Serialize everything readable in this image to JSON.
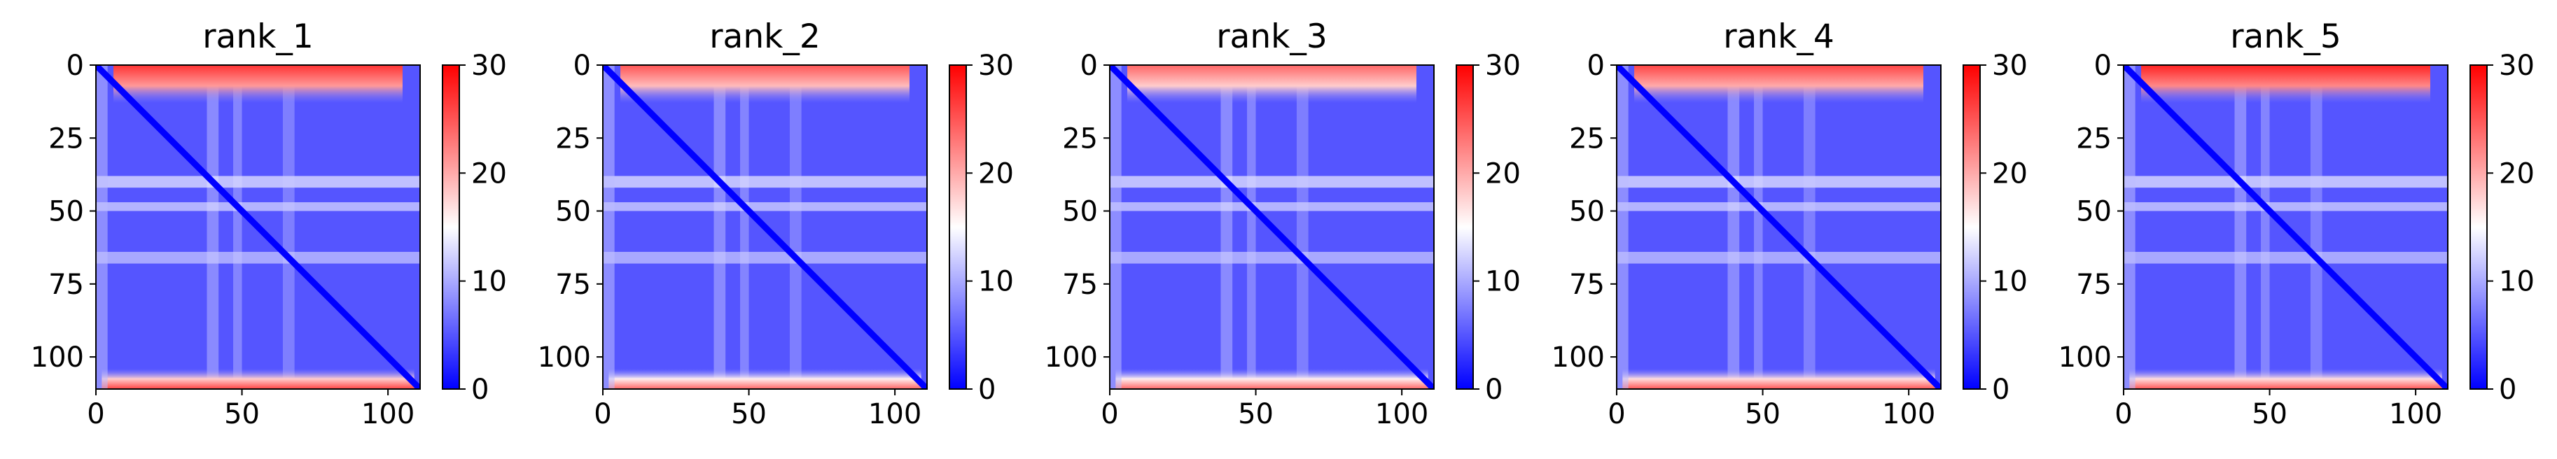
{
  "chart_data": [
    {
      "type": "heatmap",
      "title": "rank_1",
      "x_ticks": [
        0,
        50,
        100
      ],
      "y_ticks": [
        0,
        25,
        50,
        75,
        100
      ],
      "xlim": [
        0,
        111
      ],
      "ylim": [
        111,
        0
      ],
      "colorbar": {
        "vmin": 0,
        "vmax": 30,
        "ticks": [
          0,
          10,
          20,
          30
        ],
        "colormap": "bwr"
      },
      "top_edge_level": 27,
      "bottom_edge_level": 26,
      "band_levels": [
        14,
        13,
        12
      ],
      "colors": {
        "low": "#0000ff",
        "mid": "#ffffff",
        "high": "#ff0000"
      }
    },
    {
      "type": "heatmap",
      "title": "rank_2",
      "x_ticks": [
        0,
        50,
        100
      ],
      "y_ticks": [
        0,
        25,
        50,
        75,
        100
      ],
      "xlim": [
        0,
        111
      ],
      "ylim": [
        111,
        0
      ],
      "colorbar": {
        "vmin": 0,
        "vmax": 30,
        "ticks": [
          0,
          10,
          20,
          30
        ],
        "colormap": "bwr"
      },
      "top_edge_level": 25,
      "bottom_edge_level": 24,
      "band_levels": [
        14,
        13,
        12
      ],
      "colors": {
        "low": "#0000ff",
        "mid": "#ffffff",
        "high": "#ff0000"
      }
    },
    {
      "type": "heatmap",
      "title": "rank_3",
      "x_ticks": [
        0,
        50,
        100
      ],
      "y_ticks": [
        0,
        25,
        50,
        75,
        100
      ],
      "xlim": [
        0,
        111
      ],
      "ylim": [
        111,
        0
      ],
      "colorbar": {
        "vmin": 0,
        "vmax": 30,
        "ticks": [
          0,
          10,
          20,
          30
        ],
        "colormap": "bwr"
      },
      "top_edge_level": 24,
      "bottom_edge_level": 24,
      "band_levels": [
        14,
        13,
        12
      ],
      "colors": {
        "low": "#0000ff",
        "mid": "#ffffff",
        "high": "#ff0000"
      }
    },
    {
      "type": "heatmap",
      "title": "rank_4",
      "x_ticks": [
        0,
        50,
        100
      ],
      "y_ticks": [
        0,
        25,
        50,
        75,
        100
      ],
      "xlim": [
        0,
        111
      ],
      "ylim": [
        111,
        0
      ],
      "colorbar": {
        "vmin": 0,
        "vmax": 30,
        "ticks": [
          0,
          10,
          20,
          30
        ],
        "colormap": "bwr"
      },
      "top_edge_level": 26,
      "bottom_edge_level": 25,
      "band_levels": [
        14,
        13,
        12
      ],
      "colors": {
        "low": "#0000ff",
        "mid": "#ffffff",
        "high": "#ff0000"
      }
    },
    {
      "type": "heatmap",
      "title": "rank_5",
      "x_ticks": [
        0,
        50,
        100
      ],
      "y_ticks": [
        0,
        25,
        50,
        75,
        100
      ],
      "xlim": [
        0,
        111
      ],
      "ylim": [
        111,
        0
      ],
      "colorbar": {
        "vmin": 0,
        "vmax": 30,
        "ticks": [
          0,
          10,
          20,
          30
        ],
        "colormap": "bwr"
      },
      "top_edge_level": 28,
      "bottom_edge_level": 25,
      "band_levels": [
        14,
        13,
        12
      ],
      "colors": {
        "low": "#0000ff",
        "mid": "#ffffff",
        "high": "#ff0000"
      }
    }
  ]
}
